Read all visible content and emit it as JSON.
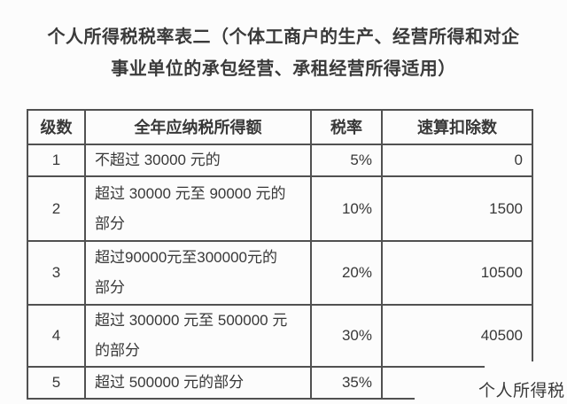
{
  "title": {
    "line1": "个人所得税税率表二（个体工商户的生产、经营所得和对企",
    "line2": "事业单位的承包经营、承租经营所得适用）"
  },
  "table": {
    "headers": [
      "级数",
      "全年应纳税所得额",
      "税率",
      "速算扣除数"
    ],
    "rows": [
      {
        "level": "1",
        "income": "不超过 30000 元的",
        "rate": "5%",
        "deduction": "0"
      },
      {
        "level": "2",
        "income": "超过 30000 元至 90000 元的\n部分",
        "rate": "10%",
        "deduction": "1500"
      },
      {
        "level": "3",
        "income": "超过90000元至300000元的\n部分",
        "rate": "20%",
        "deduction": "10500"
      },
      {
        "level": "4",
        "income": "超过 300000 元至 500000 元\n的部分",
        "rate": "30%",
        "deduction": "40500"
      },
      {
        "level": "5",
        "income": "超过 500000 元的部分",
        "rate": "35%",
        "deduction": ""
      }
    ]
  },
  "watermark": "个人所得税",
  "colors": {
    "text": "#3a3a3a",
    "border": "#515151",
    "background": "#fcfcfc"
  }
}
